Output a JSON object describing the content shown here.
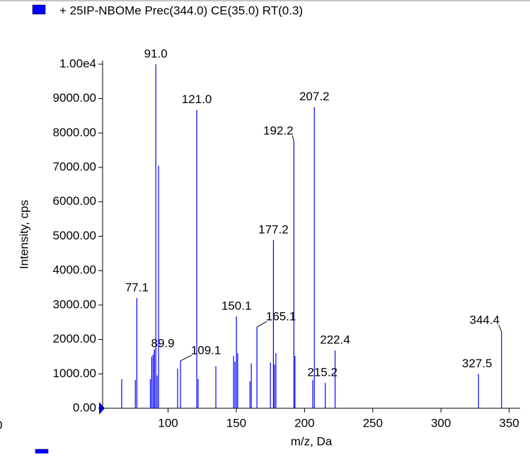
{
  "chart_data": {
    "type": "stem",
    "title": "+ 25IP-NBOMe Prec(344.0) CE(35.0) RT(0.3)",
    "x_label": "m/z, Da",
    "y_label": "Intensity, cps",
    "stray_label": "0",
    "color": "#0000ff",
    "xlim": [
      52,
      358
    ],
    "ylim": [
      0,
      10100
    ],
    "xticks": [
      100,
      150,
      200,
      250,
      300,
      350
    ],
    "yticks": [
      {
        "value": 0,
        "label": "0.00"
      },
      {
        "value": 1000,
        "label": "1000.00"
      },
      {
        "value": 2000,
        "label": "2000.00"
      },
      {
        "value": 3000,
        "label": "3000.00"
      },
      {
        "value": 4000,
        "label": "4000.00"
      },
      {
        "value": 5000,
        "label": "5000.00"
      },
      {
        "value": 6000,
        "label": "6000.00"
      },
      {
        "value": 7000,
        "label": "7000.00"
      },
      {
        "value": 8000,
        "label": "8000.00"
      },
      {
        "value": 9000,
        "label": "9000.00"
      },
      {
        "value": 10000,
        "label": "1.00e4"
      }
    ],
    "x": [
      66,
      76,
      77.1,
      87,
      88,
      89,
      89.9,
      90,
      91.0,
      92,
      93,
      107,
      109.1,
      121.0,
      122,
      135,
      148,
      149,
      150.1,
      151,
      160,
      161,
      165.1,
      175,
      177.2,
      178,
      179,
      192.2,
      193,
      206,
      207.2,
      215.2,
      222.4,
      327.5,
      344.4
    ],
    "values": [
      850,
      820,
      3200,
      850,
      1500,
      1560,
      1700,
      1700,
      10000,
      950,
      7050,
      1150,
      1380,
      8670,
      850,
      1220,
      1520,
      1350,
      2670,
      1600,
      780,
      1300,
      2360,
      1330,
      4890,
      1270,
      1600,
      7760,
      1520,
      820,
      8750,
      740,
      1680,
      1000,
      2220
    ],
    "peak_labels": [
      null,
      null,
      "77.1",
      null,
      null,
      null,
      "89.9",
      null,
      "91.0",
      null,
      null,
      null,
      "109.1",
      "121.0",
      null,
      null,
      null,
      null,
      "150.1",
      null,
      null,
      null,
      "165.1",
      null,
      "177.2",
      null,
      null,
      "192.2",
      null,
      null,
      "207.2",
      "215.2",
      "222.4",
      "327.5",
      "344.4"
    ]
  }
}
